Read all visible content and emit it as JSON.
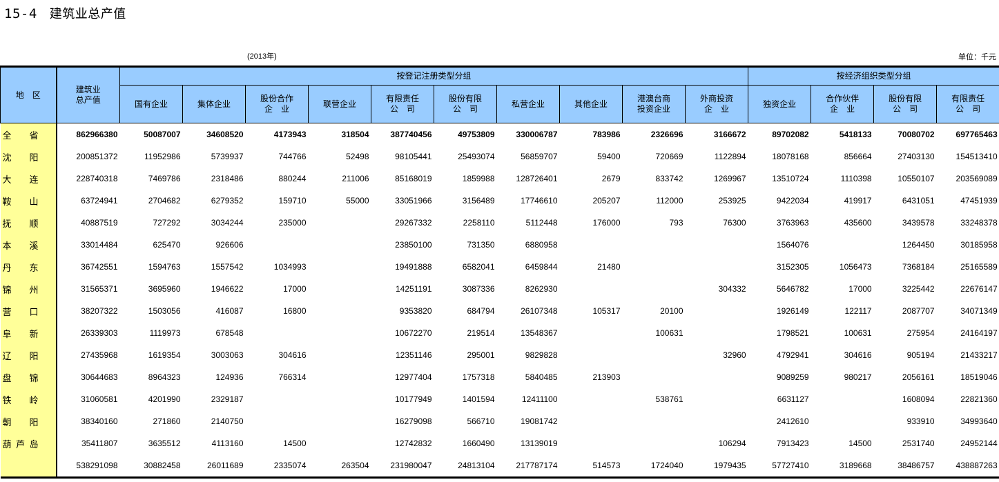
{
  "title": {
    "number": "15-4",
    "name": "建筑业总产值"
  },
  "year": "(2013年)",
  "unit": "单位：千元",
  "header": {
    "region": "地　区",
    "total": [
      "建筑业",
      "总产值"
    ],
    "group1": "按登记注册类型分组",
    "group2": "按经济组织类型分组",
    "columns": [
      [
        "国有企业"
      ],
      [
        "集体企业"
      ],
      [
        "股份合作",
        "企　业"
      ],
      [
        "联营企业"
      ],
      [
        "有限责任",
        "公　司"
      ],
      [
        "股份有限",
        "公　司"
      ],
      [
        "私营企业"
      ],
      [
        "其他企业"
      ],
      [
        "港澳台商",
        "投资企业"
      ],
      [
        "外商投资",
        "企　业"
      ],
      [
        "独资企业"
      ],
      [
        "合作伙伴",
        "企　业"
      ],
      [
        "股份有限",
        "公　司"
      ],
      [
        "有限责任",
        "公　司"
      ]
    ]
  },
  "rows": [
    {
      "region": [
        "全",
        "省"
      ],
      "values": [
        "862966380",
        "50087007",
        "34608520",
        "4173943",
        "318504",
        "387740456",
        "49753809",
        "330006787",
        "783986",
        "2326696",
        "3166672",
        "89702082",
        "5418133",
        "70080702",
        "697765463"
      ]
    },
    {
      "region": [
        "沈",
        "阳"
      ],
      "values": [
        "200851372",
        "11952986",
        "5739937",
        "744766",
        "52498",
        "98105441",
        "25493074",
        "56859707",
        "59400",
        "720669",
        "1122894",
        "18078168",
        "856664",
        "27403130",
        "154513410"
      ]
    },
    {
      "region": [
        "大",
        "连"
      ],
      "values": [
        "228740318",
        "7469786",
        "2318486",
        "880244",
        "211006",
        "85168019",
        "1859988",
        "128726401",
        "2679",
        "833742",
        "1269967",
        "13510724",
        "1110398",
        "10550107",
        "203569089"
      ]
    },
    {
      "region": [
        "鞍",
        "山"
      ],
      "values": [
        "63724941",
        "2704682",
        "6279352",
        "159710",
        "55000",
        "33051966",
        "3156489",
        "17746610",
        "205207",
        "112000",
        "253925",
        "9422034",
        "419917",
        "6431051",
        "47451939"
      ]
    },
    {
      "region": [
        "抚",
        "顺"
      ],
      "values": [
        "40887519",
        "727292",
        "3034244",
        "235000",
        "",
        "29267332",
        "2258110",
        "5112448",
        "176000",
        "793",
        "76300",
        "3763963",
        "435600",
        "3439578",
        "33248378"
      ]
    },
    {
      "region": [
        "本",
        "溪"
      ],
      "values": [
        "33014484",
        "625470",
        "926606",
        "",
        "",
        "23850100",
        "731350",
        "6880958",
        "",
        "",
        "",
        "1564076",
        "",
        "1264450",
        "30185958"
      ]
    },
    {
      "region": [
        "丹",
        "东"
      ],
      "values": [
        "36742551",
        "1594763",
        "1557542",
        "1034993",
        "",
        "19491888",
        "6582041",
        "6459844",
        "21480",
        "",
        "",
        "3152305",
        "1056473",
        "7368184",
        "25165589"
      ]
    },
    {
      "region": [
        "锦",
        "州"
      ],
      "values": [
        "31565371",
        "3695960",
        "1946622",
        "17000",
        "",
        "14251191",
        "3087336",
        "8262930",
        "",
        "",
        "304332",
        "5646782",
        "17000",
        "3225442",
        "22676147"
      ]
    },
    {
      "region": [
        "营",
        "口"
      ],
      "values": [
        "38207322",
        "1503056",
        "416087",
        "16800",
        "",
        "9353820",
        "684794",
        "26107348",
        "105317",
        "20100",
        "",
        "1926149",
        "122117",
        "2087707",
        "34071349"
      ]
    },
    {
      "region": [
        "阜",
        "新"
      ],
      "values": [
        "26339303",
        "1119973",
        "678548",
        "",
        "",
        "10672270",
        "219514",
        "13548367",
        "",
        "100631",
        "",
        "1798521",
        "100631",
        "275954",
        "24164197"
      ]
    },
    {
      "region": [
        "辽",
        "阳"
      ],
      "values": [
        "27435968",
        "1619354",
        "3003063",
        "304616",
        "",
        "12351146",
        "295001",
        "9829828",
        "",
        "",
        "32960",
        "4792941",
        "304616",
        "905194",
        "21433217"
      ]
    },
    {
      "region": [
        "盘",
        "锦"
      ],
      "values": [
        "30644683",
        "8964323",
        "124936",
        "766314",
        "",
        "12977404",
        "1757318",
        "5840485",
        "213903",
        "",
        "",
        "9089259",
        "980217",
        "2056161",
        "18519046"
      ]
    },
    {
      "region": [
        "铁",
        "岭"
      ],
      "values": [
        "31060581",
        "4201990",
        "2329187",
        "",
        "",
        "10177949",
        "1401594",
        "12411100",
        "",
        "538761",
        "",
        "6631127",
        "",
        "1608094",
        "22821360"
      ]
    },
    {
      "region": [
        "朝",
        "阳"
      ],
      "values": [
        "38340160",
        "271860",
        "2140750",
        "",
        "",
        "16279098",
        "566710",
        "19081742",
        "",
        "",
        "",
        "2412610",
        "",
        "933910",
        "34993640"
      ]
    },
    {
      "region": [
        "葫",
        "芦",
        "岛"
      ],
      "values": [
        "35411807",
        "3635512",
        "4113160",
        "14500",
        "",
        "12742832",
        "1660490",
        "13139019",
        "",
        "",
        "106294",
        "7913423",
        "14500",
        "2531740",
        "24952144"
      ]
    },
    {
      "region": [],
      "values": [
        "538291098",
        "30882458",
        "26011689",
        "2335074",
        "263504",
        "231980047",
        "24813104",
        "217787174",
        "514573",
        "1724040",
        "1979435",
        "57727410",
        "3189668",
        "38486757",
        "438887263"
      ]
    }
  ],
  "colors": {
    "header_bg": "#99ccff",
    "region_bg": "#ffff99"
  }
}
